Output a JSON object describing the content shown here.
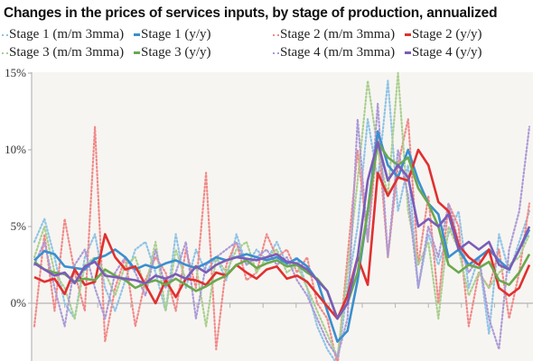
{
  "chart_data": {
    "type": "line",
    "title": "Changes in the prices of services inputs, by stage of production, annualized",
    "xlabel": "",
    "ylabel": "",
    "ylim": [
      -3.8,
      15
    ],
    "yticks": [
      {
        "v": 15,
        "label": "15%"
      },
      {
        "v": 10,
        "label": "10%"
      },
      {
        "v": 5,
        "label": "5%"
      },
      {
        "v": 0,
        "label": "0%"
      }
    ],
    "grid": false,
    "legend_position": "top",
    "series": [
      {
        "name": "Stage 1 (m/m 3mma)",
        "color": "#8fc3e6",
        "style": "dotted",
        "values": [
          4.0,
          5.5,
          3.0,
          0.0,
          -1.0,
          3.0,
          4.5,
          1.0,
          -0.5,
          1.5,
          3.5,
          4.0,
          2.0,
          -0.5,
          4.5,
          1.0,
          3.5,
          2.0,
          3.0,
          1.5,
          4.5,
          2.5,
          3.5,
          2.8,
          4.0,
          2.5,
          3.0,
          1.0,
          -1.5,
          -3.0,
          -4.0,
          1.0,
          5.0,
          12.0,
          8.0,
          14.5,
          6.0,
          9.0,
          1.0,
          4.5,
          2.5,
          4.5,
          6.0,
          1.0,
          3.0,
          -2.0,
          4.5,
          2.0,
          4.0,
          6.0
        ]
      },
      {
        "name": "Stage 1 (y/y)",
        "color": "#3a8fcf",
        "style": "solid",
        "values": [
          2.8,
          3.4,
          3.2,
          2.4,
          2.3,
          2.2,
          2.9,
          3.1,
          3.5,
          3.0,
          2.2,
          2.5,
          2.3,
          2.6,
          2.8,
          2.5,
          2.3,
          2.6,
          3.0,
          2.8,
          3.0,
          3.2,
          3.0,
          2.8,
          3.0,
          2.6,
          2.9,
          2.4,
          1.5,
          -0.5,
          -2.5,
          -1.8,
          1.5,
          6.0,
          11.2,
          9.0,
          8.2,
          10.0,
          8.0,
          6.5,
          5.8,
          3.0,
          3.5,
          2.5,
          3.0,
          3.5,
          2.8,
          2.2,
          3.5,
          4.8
        ]
      },
      {
        "name": "Stage 2 (m/m 3mma)",
        "color": "#f08a8a",
        "style": "dotted",
        "values": [
          -1.5,
          4.5,
          -0.5,
          5.5,
          2.0,
          -0.5,
          11.5,
          -2.5,
          1.0,
          3.0,
          -1.5,
          1.5,
          3.0,
          2.0,
          -0.5,
          3.5,
          1.0,
          8.5,
          -3.0,
          2.5,
          4.0,
          1.5,
          2.0,
          4.5,
          3.0,
          3.5,
          2.0,
          3.0,
          0.0,
          -1.0,
          -4.0,
          3.0,
          10.0,
          4.0,
          11.0,
          3.0,
          9.0,
          12.0,
          2.5,
          7.0,
          0.0,
          6.5,
          5.0,
          -1.5,
          2.0,
          1.0,
          3.5,
          -1.0,
          2.0,
          6.5
        ]
      },
      {
        "name": "Stage 2 (y/y)",
        "color": "#e03030",
        "style": "solid",
        "values": [
          1.7,
          1.4,
          1.6,
          0.6,
          2.2,
          1.2,
          1.4,
          4.5,
          3.0,
          2.2,
          2.4,
          1.2,
          0.0,
          1.5,
          0.4,
          1.6,
          1.5,
          1.2,
          2.0,
          1.8,
          2.5,
          2.0,
          1.6,
          2.2,
          2.4,
          1.6,
          1.8,
          1.4,
          0.6,
          -0.2,
          -1.0,
          0.5,
          3.0,
          1.2,
          8.5,
          7.0,
          8.2,
          8.0,
          10.0,
          9.0,
          6.6,
          6.0,
          3.8,
          3.0,
          2.5,
          3.5,
          1.0,
          0.5,
          1.0,
          2.5
        ]
      },
      {
        "name": "Stage 3 (m/m 3mma)",
        "color": "#a9cf8f",
        "style": "dotted",
        "values": [
          3.0,
          5.0,
          2.0,
          1.0,
          -1.0,
          2.5,
          3.0,
          2.0,
          0.5,
          2.5,
          3.0,
          1.0,
          4.0,
          -0.5,
          3.5,
          1.5,
          2.5,
          -1.5,
          3.0,
          2.0,
          3.5,
          4.0,
          2.0,
          3.0,
          3.5,
          2.0,
          2.5,
          1.0,
          -0.5,
          -2.0,
          -3.5,
          2.0,
          8.0,
          14.5,
          10.0,
          7.0,
          15.0,
          6.0,
          2.5,
          4.0,
          -1.0,
          5.0,
          3.5,
          0.5,
          2.0,
          1.0,
          2.0,
          2.5,
          3.0,
          4.5
        ]
      },
      {
        "name": "Stage 3 (y/y)",
        "color": "#6aa84f",
        "style": "solid",
        "values": [
          2.7,
          2.2,
          2.0,
          1.9,
          1.4,
          1.6,
          1.5,
          2.2,
          1.8,
          1.5,
          1.0,
          1.3,
          1.5,
          1.2,
          1.6,
          1.2,
          0.8,
          1.1,
          1.5,
          1.8,
          2.5,
          2.8,
          2.3,
          2.6,
          2.8,
          2.4,
          2.5,
          2.0,
          1.6,
          0.8,
          -1.0,
          0.0,
          2.0,
          6.0,
          10.5,
          9.5,
          9.0,
          9.5,
          7.5,
          6.5,
          5.0,
          2.5,
          2.0,
          2.5,
          2.3,
          2.7,
          1.5,
          1.2,
          2.0,
          3.2
        ]
      },
      {
        "name": "Stage 4 (m/m 3mma)",
        "color": "#ab9ad6",
        "style": "dotted",
        "values": [
          2.5,
          4.0,
          1.0,
          -1.5,
          2.5,
          3.5,
          1.0,
          -1.0,
          2.0,
          3.0,
          2.0,
          0.5,
          3.5,
          1.0,
          2.0,
          4.0,
          -1.0,
          2.5,
          3.0,
          3.5,
          4.0,
          2.5,
          3.0,
          3.5,
          2.5,
          3.0,
          1.5,
          0.5,
          -1.0,
          -2.5,
          -3.5,
          -1.0,
          12.0,
          4.0,
          13.0,
          3.0,
          10.0,
          7.0,
          1.0,
          5.0,
          3.0,
          6.5,
          4.0,
          2.0,
          3.0,
          -1.0,
          -3.0,
          3.5,
          6.0,
          11.5
        ]
      },
      {
        "name": "Stage 4 (y/y)",
        "color": "#7a5cb8",
        "style": "solid",
        "values": [
          2.6,
          2.2,
          1.8,
          2.0,
          1.3,
          2.4,
          2.7,
          1.8,
          1.7,
          1.6,
          1.5,
          1.3,
          1.8,
          1.6,
          1.9,
          1.6,
          2.4,
          2.0,
          2.5,
          2.8,
          3.0,
          2.9,
          2.8,
          3.0,
          3.2,
          2.7,
          2.6,
          2.2,
          1.5,
          0.8,
          -1.0,
          0.0,
          3.0,
          8.0,
          10.5,
          8.0,
          9.0,
          8.2,
          5.0,
          5.5,
          5.0,
          5.8,
          3.5,
          4.0,
          3.5,
          4.0,
          2.5,
          2.2,
          3.5,
          5.0
        ]
      }
    ]
  }
}
